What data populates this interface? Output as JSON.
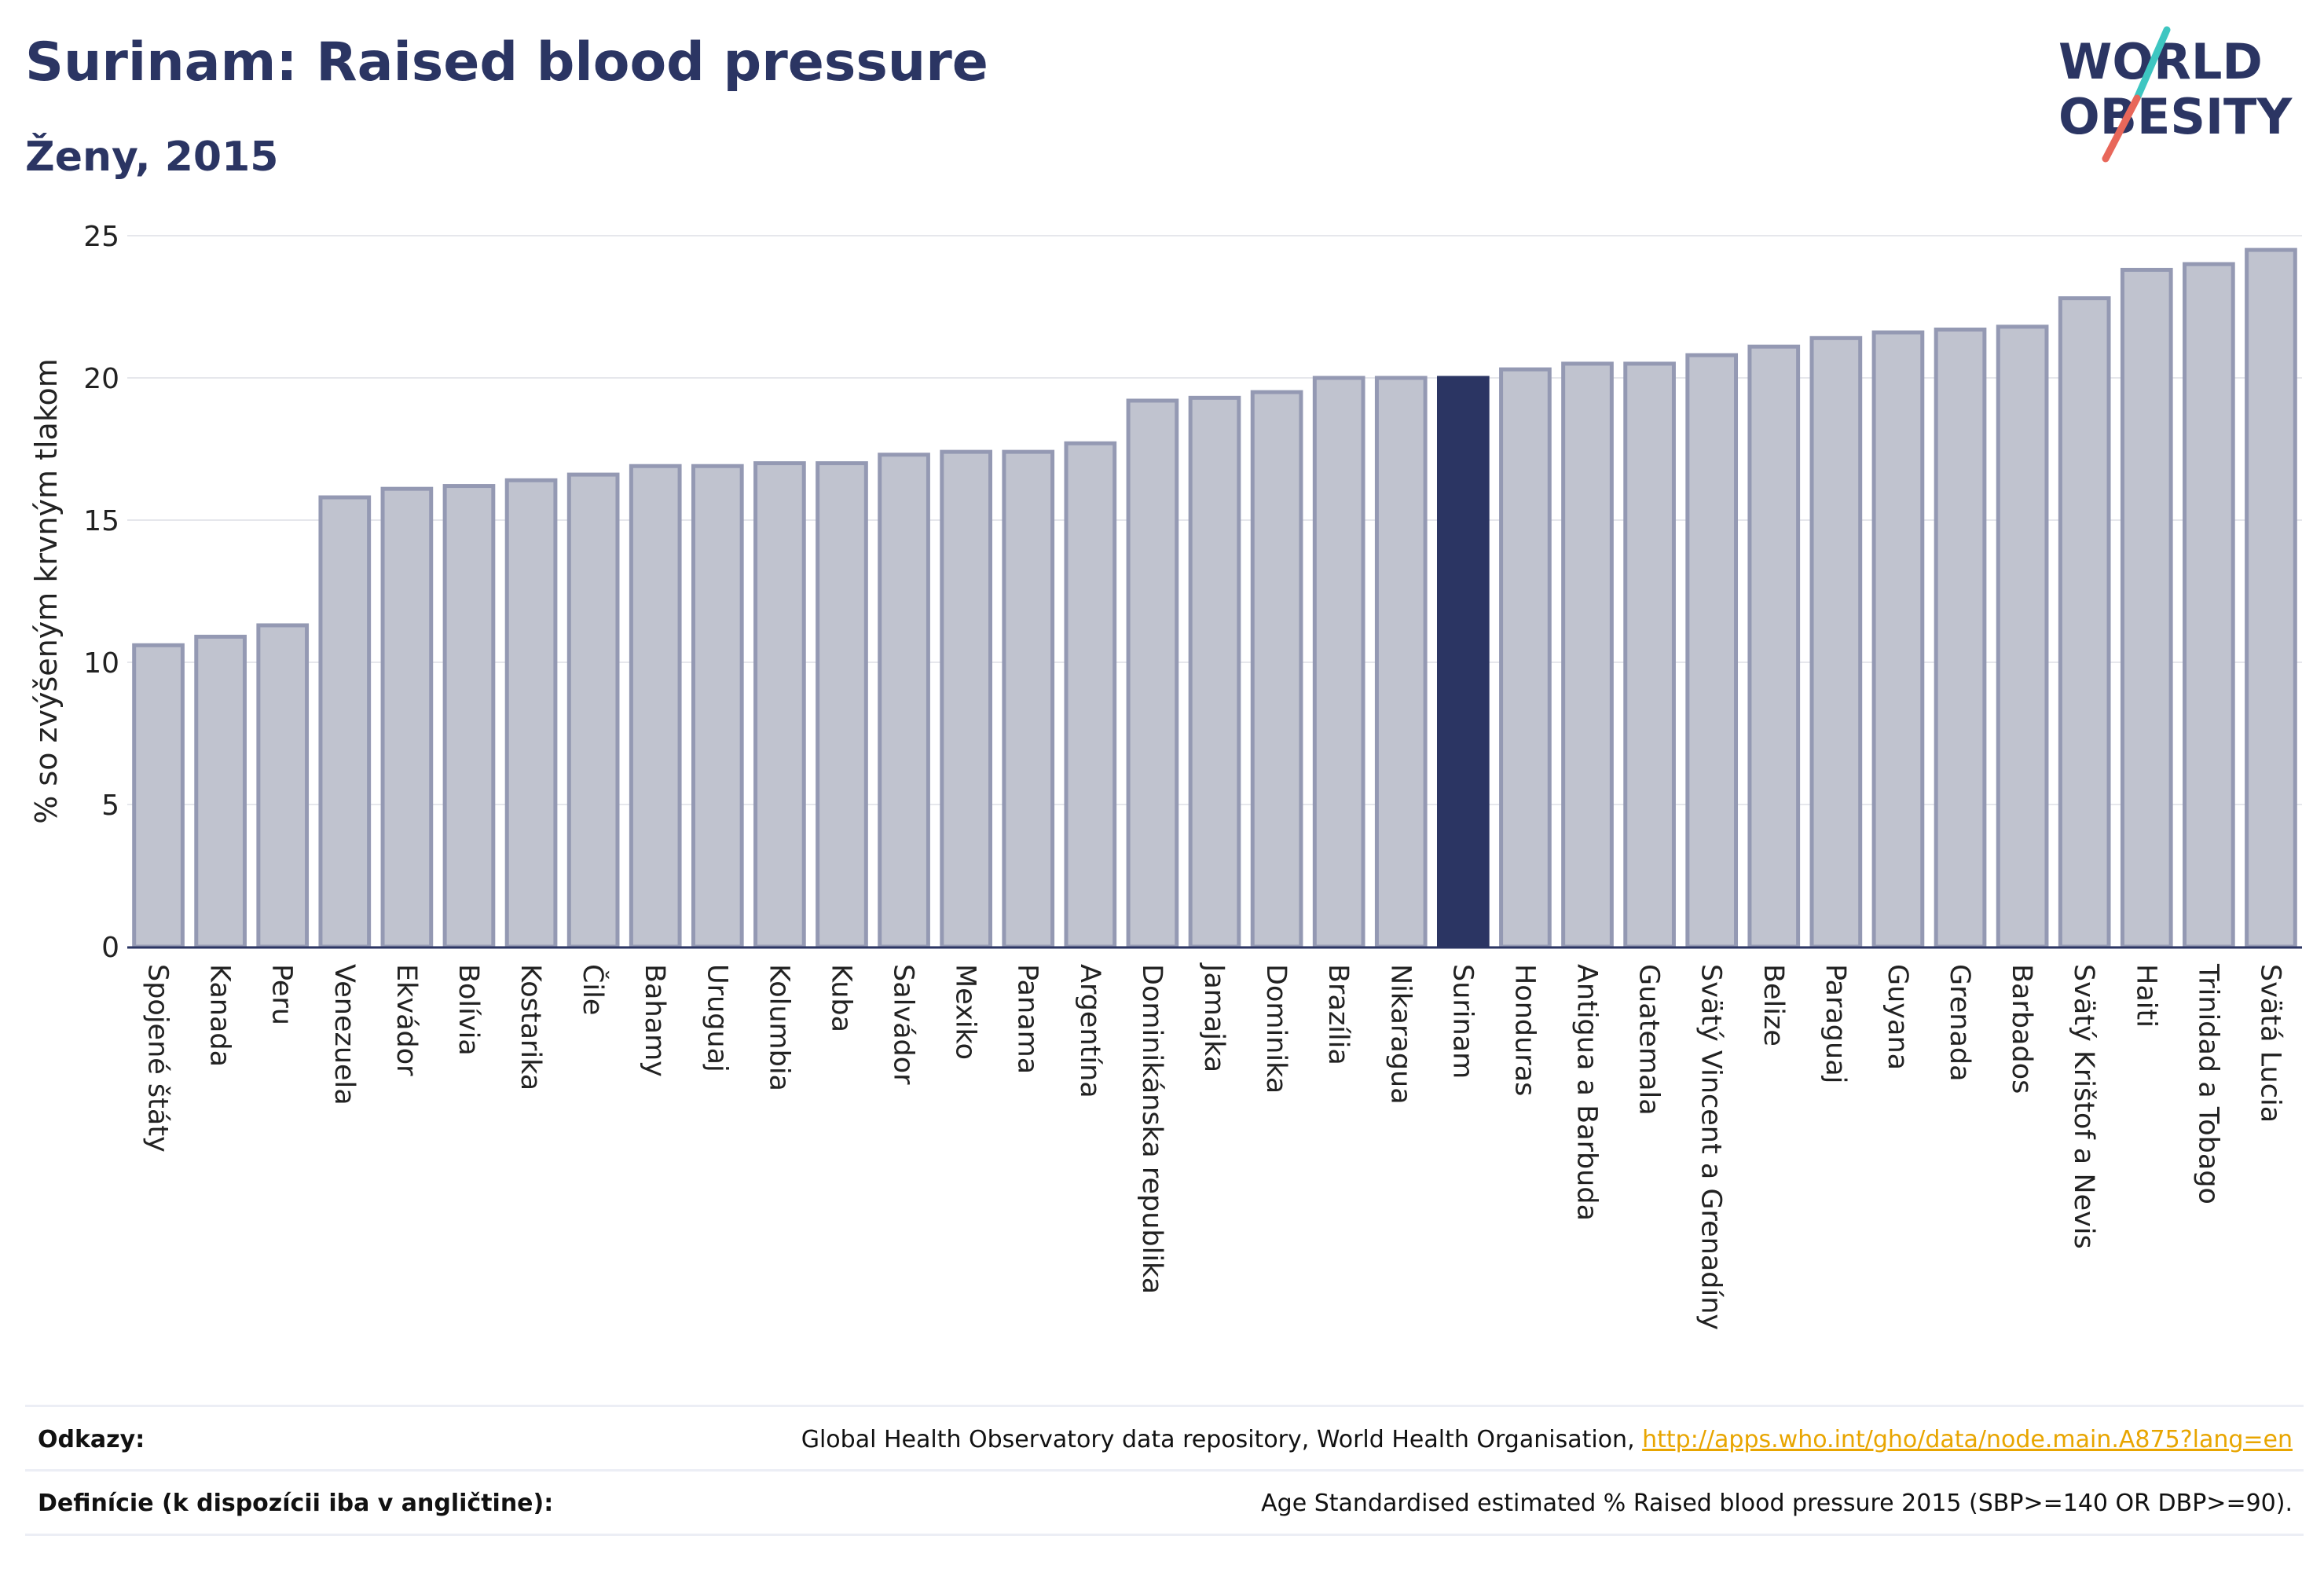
{
  "header": {
    "title": "Surinam: Raised blood pressure",
    "subtitle": "Ženy, 2015"
  },
  "logo": {
    "line1": "WORLD",
    "line2": "OBESITY",
    "colors": {
      "text": "#2b3563",
      "slash_top": "#3ec6c1",
      "slash_bottom": "#e8675a"
    }
  },
  "chart_data": {
    "type": "bar",
    "ylabel": "% so zvýšeným krvným tlakom",
    "ylim": [
      0,
      25
    ],
    "yticks": [
      0,
      5,
      10,
      15,
      20,
      25
    ],
    "grid": true,
    "highlight": "Surinam",
    "colors": {
      "bar": "#c0c3cf",
      "bar_border": "#9499b3",
      "highlight": "#2b3563"
    },
    "categories": [
      "Spojené štáty",
      "Kanada",
      "Peru",
      "Venezuela",
      "Ekvádor",
      "Bolívia",
      "Kostarika",
      "Čile",
      "Bahamy",
      "Uruguaj",
      "Kolumbia",
      "Kuba",
      "Salvádor",
      "Mexiko",
      "Panama",
      "Argentína",
      "Dominikánska republika",
      "Jamajka",
      "Dominika",
      "Brazília",
      "Nikaragua",
      "Surinam",
      "Honduras",
      "Antigua a Barbuda",
      "Guatemala",
      "Svätý Vincent a Grenadíny",
      "Belize",
      "Paraguaj",
      "Guyana",
      "Grenada",
      "Barbados",
      "Svätý Krištof a Nevis",
      "Haiti",
      "Trinidad a Tobago",
      "Svätá Lucia"
    ],
    "values": [
      10.6,
      10.9,
      11.3,
      15.8,
      16.1,
      16.2,
      16.4,
      16.6,
      16.9,
      16.9,
      17.0,
      17.0,
      17.3,
      17.4,
      17.4,
      17.7,
      19.2,
      19.3,
      19.5,
      20.0,
      20.0,
      20.0,
      20.3,
      20.5,
      20.5,
      20.8,
      21.1,
      21.4,
      21.6,
      21.7,
      21.8,
      22.8,
      23.8,
      24.0,
      24.5
    ]
  },
  "footer": {
    "references_label": "Odkazy:",
    "references_text": "Global Health Observatory data repository, World Health Organisation, ",
    "references_link": "http://apps.who.int/gho/data/node.main.A875?lang=en",
    "definitions_label": "Definície (k dispozícii iba v angličtine):",
    "definitions_text": "Age Standardised estimated % Raised blood pressure 2015 (SBP>=140 OR DBP>=90)."
  }
}
